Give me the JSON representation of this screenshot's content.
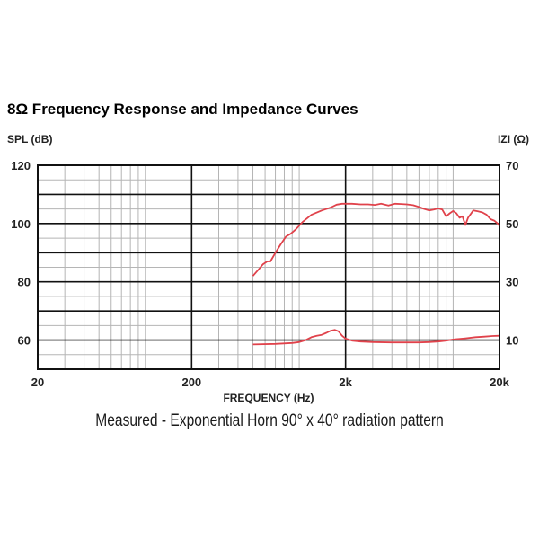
{
  "chart_data": {
    "type": "line",
    "title": "8Ω Frequency Response and Impedance Curves",
    "xlabel": "FREQUENCY (Hz)",
    "ylabel_left": "SPL (dB)",
    "ylabel_right": "IZI (Ω)",
    "caption": "Measured - Exponential Horn 90° x 40° radiation pattern",
    "x_scale": "log",
    "xlim": [
      20,
      20000
    ],
    "ylim_left": [
      50,
      120
    ],
    "ylim_right": [
      0,
      70
    ],
    "x_ticks": [
      {
        "value": 20,
        "label": "20"
      },
      {
        "value": 200,
        "label": "200"
      },
      {
        "value": 2000,
        "label": "2k"
      },
      {
        "value": 20000,
        "label": "20k"
      }
    ],
    "y_ticks_left": [
      {
        "value": 60,
        "label": "60"
      },
      {
        "value": 80,
        "label": "80"
      },
      {
        "value": 100,
        "label": "100"
      },
      {
        "value": 120,
        "label": "120"
      }
    ],
    "y_ticks_right": [
      {
        "value": 10,
        "label": "10"
      },
      {
        "value": 30,
        "label": "30"
      },
      {
        "value": 50,
        "label": "50"
      },
      {
        "value": 70,
        "label": "70"
      }
    ],
    "grid": true,
    "series": [
      {
        "axis": "left",
        "color": "#e0424b",
        "x": [
          500,
          540,
          580,
          620,
          650,
          700,
          760,
          820,
          880,
          950,
          1050,
          1200,
          1400,
          1600,
          1750,
          1900,
          2000,
          2200,
          2500,
          2800,
          3100,
          3400,
          3800,
          4200,
          4600,
          5000,
          5500,
          6000,
          6500,
          7000,
          7500,
          8000,
          8500,
          9000,
          9500,
          10000,
          10500,
          11000,
          11500,
          12000,
          12500,
          13500,
          14500,
          15500,
          16500,
          17500,
          18500,
          19500,
          20000
        ],
        "y": [
          82,
          84,
          86,
          87,
          87,
          90,
          93,
          95.5,
          96.5,
          98,
          100.5,
          103,
          104.5,
          105.5,
          106.5,
          106.8,
          106.8,
          106.8,
          106.6,
          106.6,
          106.4,
          106.8,
          106.2,
          106.8,
          106.7,
          106.6,
          106.3,
          105.7,
          105,
          104.5,
          104.8,
          105.2,
          104.8,
          102.5,
          103.5,
          104.3,
          103.5,
          102,
          102.5,
          99.5,
          102,
          104.5,
          104.2,
          103.8,
          103,
          101.5,
          101,
          100,
          99.2
        ]
      },
      {
        "axis": "right",
        "color": "#e0424b",
        "x": [
          500,
          700,
          900,
          1000,
          1100,
          1200,
          1300,
          1400,
          1500,
          1600,
          1700,
          1800,
          1900,
          2000,
          2200,
          2500,
          3000,
          4000,
          5000,
          6000,
          7000,
          8000,
          9000,
          10000,
          12000,
          14000,
          16000,
          18000,
          20000
        ],
        "y": [
          8.5,
          8.7,
          9,
          9.3,
          10,
          11,
          11.5,
          11.8,
          12.5,
          13.2,
          13.5,
          13,
          11.5,
          10.5,
          9.8,
          9.5,
          9.3,
          9.2,
          9.2,
          9.2,
          9.3,
          9.5,
          9.8,
          10.2,
          10.6,
          11,
          11.2,
          11.4,
          11.5
        ]
      }
    ]
  }
}
